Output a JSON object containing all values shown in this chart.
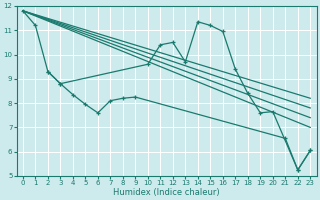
{
  "xlabel": "Humidex (Indice chaleur)",
  "bg_color": "#cdeaed",
  "grid_color": "#ffffff",
  "line_color": "#1a7a6e",
  "xlim": [
    -0.5,
    23.5
  ],
  "ylim": [
    5,
    12
  ],
  "xticks": [
    0,
    1,
    2,
    3,
    4,
    5,
    6,
    7,
    8,
    9,
    10,
    11,
    12,
    13,
    14,
    15,
    16,
    17,
    18,
    19,
    20,
    21,
    22,
    23
  ],
  "yticks": [
    5,
    6,
    7,
    8,
    9,
    10,
    11,
    12
  ],
  "main_curve": {
    "x": [
      0,
      1,
      2,
      3,
      10,
      11,
      12,
      13,
      14,
      15,
      16,
      17,
      18,
      19,
      20,
      22,
      23
    ],
    "y": [
      11.8,
      11.2,
      9.3,
      8.8,
      9.6,
      10.4,
      10.5,
      9.7,
      11.35,
      11.2,
      10.95,
      9.4,
      8.4,
      7.6,
      7.65,
      5.25,
      6.05
    ]
  },
  "line2": {
    "x": [
      2,
      3,
      4,
      5,
      6,
      7,
      8,
      9,
      21,
      22,
      23
    ],
    "y": [
      9.3,
      8.8,
      8.35,
      7.95,
      7.6,
      8.1,
      8.2,
      8.25,
      6.55,
      5.25,
      6.05
    ]
  },
  "straight_lines": [
    {
      "x": [
        0,
        23
      ],
      "y": [
        11.8,
        8.2
      ]
    },
    {
      "x": [
        0,
        23
      ],
      "y": [
        11.8,
        7.8
      ]
    },
    {
      "x": [
        0,
        23
      ],
      "y": [
        11.8,
        7.4
      ]
    },
    {
      "x": [
        0,
        23
      ],
      "y": [
        11.8,
        7.0
      ]
    }
  ]
}
